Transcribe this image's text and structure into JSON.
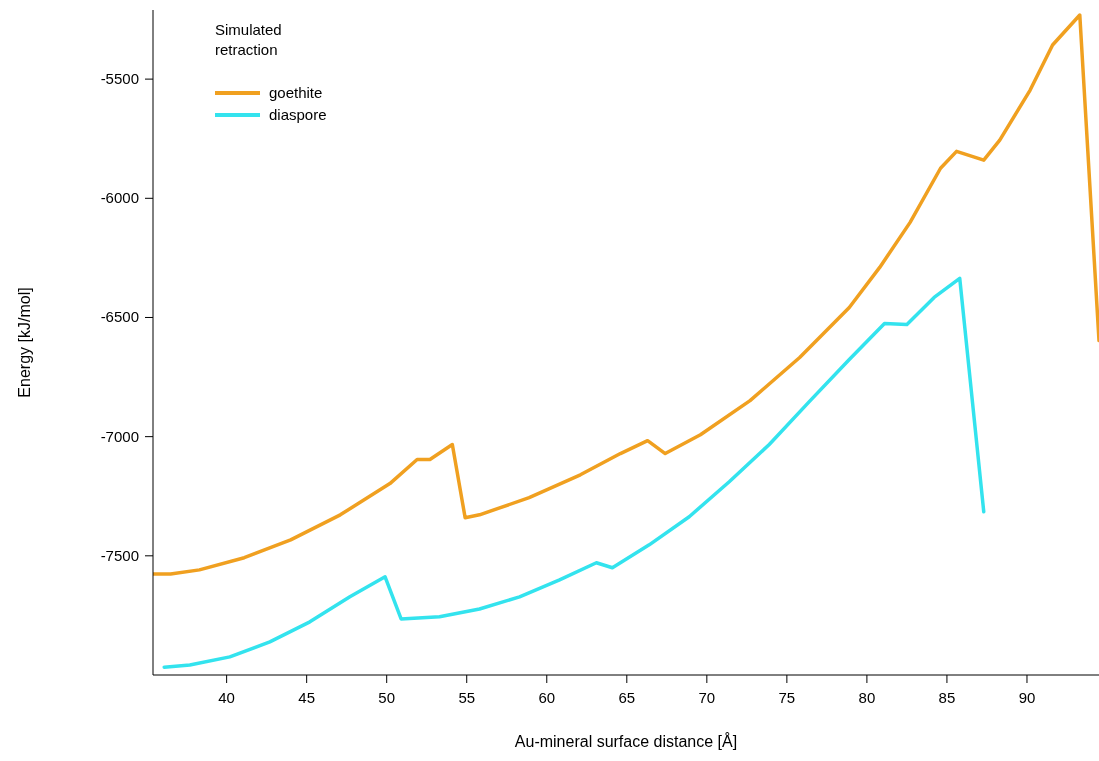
{
  "chart_data": {
    "type": "line",
    "xlabel": "Au-mineral surface distance [Å]",
    "ylabel": "Energy [kJ/mol]",
    "legend_title": "Simulated retraction",
    "legend": "top left",
    "grid": false,
    "line_style": "solid",
    "marker": "none",
    "xlim": [
      35.4,
      94.5
    ],
    "ylim": [
      -8000,
      -5210
    ],
    "xticks": [
      40,
      45,
      50,
      55,
      60,
      65,
      70,
      75,
      80,
      85,
      90
    ],
    "yticks": [
      -7500,
      -7000,
      -6500,
      -6000,
      -5500
    ],
    "series": [
      {
        "name": "goethite",
        "color": "#f0a020",
        "x": [
          35.4,
          36.5,
          38.3,
          41.1,
          44,
          47.1,
          50.2,
          51.9,
          52.7,
          54.1,
          54.9,
          55.8,
          58.9,
          62.1,
          64.6,
          66.3,
          67.4,
          69.6,
          72.7,
          75.8,
          78.9,
          80.8,
          82.7,
          84.6,
          85.6,
          87.3,
          88.3,
          90.2,
          91.6,
          93.3,
          94.5
        ],
        "values": [
          -7576,
          -7576,
          -7559,
          -7508,
          -7433,
          -7328,
          -7197,
          -7096,
          -7096,
          -7033,
          -7340,
          -7328,
          -7256,
          -7160,
          -7071,
          -7017,
          -7071,
          -6992,
          -6849,
          -6668,
          -6458,
          -6290,
          -6101,
          -5874,
          -5803,
          -5840,
          -5756,
          -5546,
          -5357,
          -5231,
          -6597
        ]
      },
      {
        "name": "diaspore",
        "color": "#33e3ee",
        "x": [
          36.1,
          37.7,
          40.2,
          42.7,
          45.2,
          47.7,
          49.9,
          50.9,
          53.3,
          55.8,
          58.3,
          60.8,
          63.1,
          64.1,
          66.4,
          68.9,
          71.4,
          73.9,
          76.4,
          78.9,
          81.1,
          82.5,
          84.2,
          85.8,
          87.3
        ],
        "values": [
          -7967,
          -7958,
          -7924,
          -7861,
          -7777,
          -7672,
          -7588,
          -7765,
          -7756,
          -7723,
          -7672,
          -7601,
          -7529,
          -7550,
          -7454,
          -7336,
          -7189,
          -7033,
          -6853,
          -6676,
          -6525,
          -6529,
          -6416,
          -6336,
          -7315
        ]
      }
    ]
  }
}
